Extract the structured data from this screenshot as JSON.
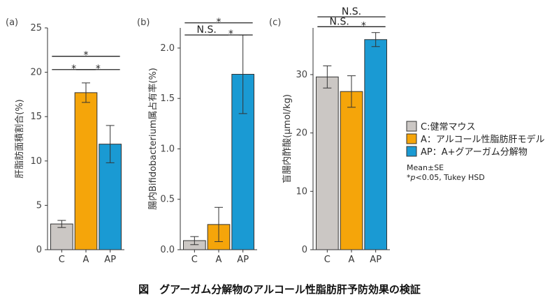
{
  "caption": "図　グアーガム分解物のアルコール性脂肪肝予防効果の検証",
  "legend": {
    "items": [
      {
        "key": "C",
        "label": "C:健常マウス",
        "color": "#cbc7c4"
      },
      {
        "key": "A",
        "label": "A：アルコール性脂肪肝モデル",
        "color": "#f5a50a"
      },
      {
        "key": "AP",
        "label": "AP：A+グアーガム分解物",
        "color": "#1a9ad3"
      }
    ],
    "note1": "Mean±SE",
    "note2": "*p<0.05, Tukey HSD"
  },
  "chart_data": [
    {
      "panel": "(a)",
      "type": "bar",
      "categories": [
        "C",
        "A",
        "AP"
      ],
      "values": [
        2.9,
        17.7,
        11.9
      ],
      "errors": [
        0.4,
        1.1,
        2.1
      ],
      "ylabel": "肝脂肪面積割合(%)",
      "ylim": [
        0,
        25
      ],
      "yticks": [
        0,
        5,
        10,
        15,
        20,
        25
      ],
      "ytick_labels": [
        "0",
        "5",
        "10",
        "15",
        "20",
        "25"
      ],
      "significance": [
        {
          "from": 1,
          "to": 2,
          "label": "*",
          "level": 20.3
        },
        {
          "from": 0,
          "to": 1,
          "label": "*",
          "level": 20.3
        },
        {
          "from": 0,
          "to": 2,
          "label": "*",
          "level": 21.8
        }
      ]
    },
    {
      "panel": "(b)",
      "type": "bar",
      "categories": [
        "C",
        "A",
        "AP"
      ],
      "values": [
        0.09,
        0.25,
        1.74
      ],
      "errors": [
        0.04,
        0.17,
        0.39
      ],
      "ylabel": "腸内Bifidobacterium属占有率(%)",
      "ylim": [
        0,
        2.2
      ],
      "yticks": [
        0,
        0.5,
        1.0,
        1.5,
        2.0
      ],
      "ytick_labels": [
        "0.0",
        "0.5",
        "1.0",
        "1.5",
        "2.0"
      ],
      "significance": [
        {
          "from": 0,
          "to": 1,
          "label": "N.S.",
          "level": 2.13
        },
        {
          "from": 1,
          "to": 2,
          "label": "*",
          "level": 2.13
        },
        {
          "from": 0,
          "to": 2,
          "label": "*",
          "level": 2.25
        }
      ]
    },
    {
      "panel": "(c)",
      "type": "bar",
      "categories": [
        "C",
        "A",
        "AP"
      ],
      "values": [
        29.6,
        27.1,
        36.0
      ],
      "errors": [
        1.9,
        2.7,
        1.2
      ],
      "ylabel": "盲腸内酢酸(μmol/kg)",
      "ylim": [
        0,
        38
      ],
      "yticks": [
        0,
        10,
        20,
        30
      ],
      "ytick_labels": [
        "0",
        "10",
        "20",
        "30"
      ],
      "significance": [
        {
          "from": 0,
          "to": 1,
          "label": "N.S.",
          "level": 38.2
        },
        {
          "from": 1,
          "to": 2,
          "label": "*",
          "level": 38.2
        },
        {
          "from": 0,
          "to": 2,
          "label": "N.S.",
          "level": 39.9
        }
      ]
    }
  ]
}
